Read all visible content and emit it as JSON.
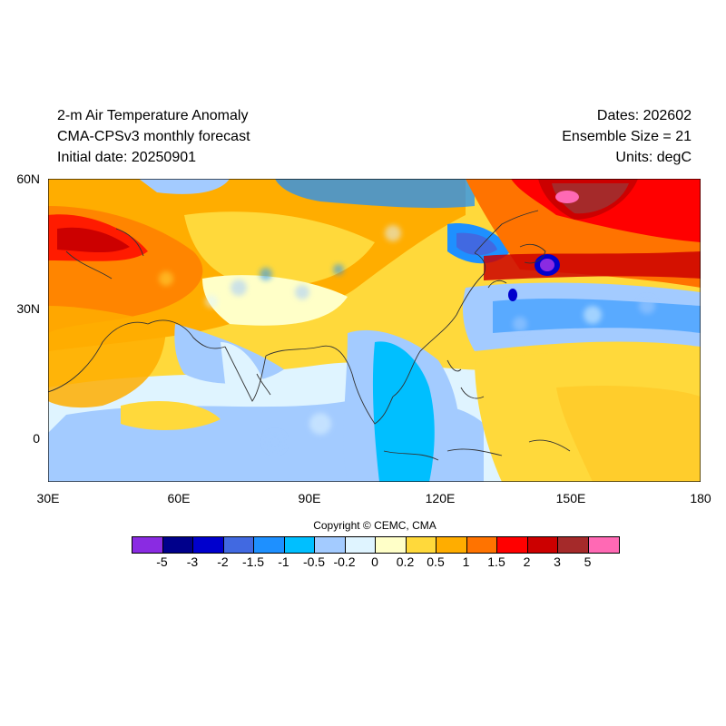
{
  "header": {
    "title": "2-m Air Temperature Anomaly",
    "subtitle": "CMA-CPSv3 monthly forecast",
    "initial_date": "Initial date: 20250901",
    "dates": "Dates: 202602",
    "ensemble": "Ensemble Size = 21",
    "units": "Units: degC"
  },
  "map": {
    "lon_range": [
      30,
      180
    ],
    "lat_range": [
      -10,
      60
    ],
    "x_ticks": [
      "30E",
      "60E",
      "90E",
      "120E",
      "150E",
      "180"
    ],
    "x_tick_values": [
      30,
      60,
      90,
      120,
      150,
      180
    ],
    "y_ticks": [
      "60N",
      "30N",
      "0"
    ],
    "y_tick_values": [
      60,
      30,
      0
    ]
  },
  "copyright": "Copyright © CEMC, CMA",
  "colorbar": {
    "colors": [
      "#8a2be2",
      "#00008b",
      "#0000cd",
      "#4169e1",
      "#1e90ff",
      "#00bfff",
      "#a3cbff",
      "#dff4ff",
      "#ffffc8",
      "#ffd93b",
      "#ffad00",
      "#ff7300",
      "#ff0000",
      "#cc0000",
      "#a52a2a",
      "#ff69b4"
    ],
    "labels": [
      "-5",
      "-3",
      "-2",
      "-1.5",
      "-1",
      "-0.5",
      "-0.2",
      "0",
      "0.2",
      "0.5",
      "1",
      "1.5",
      "2",
      "3",
      "5"
    ]
  }
}
